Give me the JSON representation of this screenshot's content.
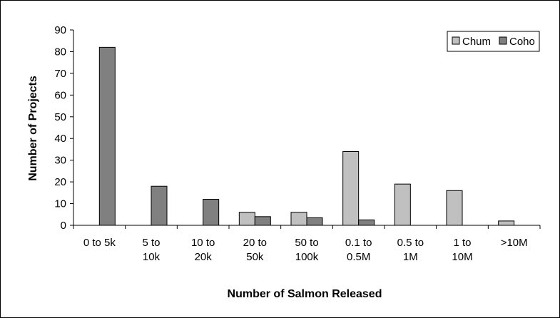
{
  "chart_data": {
    "type": "bar",
    "title": "",
    "xlabel": "Number of Salmon Released",
    "ylabel": "Number of Projects",
    "ylim": [
      0,
      90
    ],
    "yticks": [
      0,
      10,
      20,
      30,
      40,
      50,
      60,
      70,
      80,
      90
    ],
    "grid": false,
    "legend_position": "top-right",
    "categories": [
      [
        "0 to 5k"
      ],
      [
        "5 to",
        "10k"
      ],
      [
        "10 to",
        "20k"
      ],
      [
        "20 to",
        "50k"
      ],
      [
        "50 to",
        "100k"
      ],
      [
        "0.1 to",
        "0.5M"
      ],
      [
        "0.5 to",
        "1M"
      ],
      [
        "1 to",
        "10M"
      ],
      [
        ">10M"
      ]
    ],
    "series": [
      {
        "name": "Chum",
        "color": "#c0c0c0",
        "values": [
          0,
          0,
          0,
          6,
          6,
          34,
          19,
          16,
          2
        ]
      },
      {
        "name": "Coho",
        "color": "#808080",
        "values": [
          82,
          18,
          12,
          4,
          3.5,
          2.5,
          0,
          0,
          0
        ]
      }
    ]
  }
}
